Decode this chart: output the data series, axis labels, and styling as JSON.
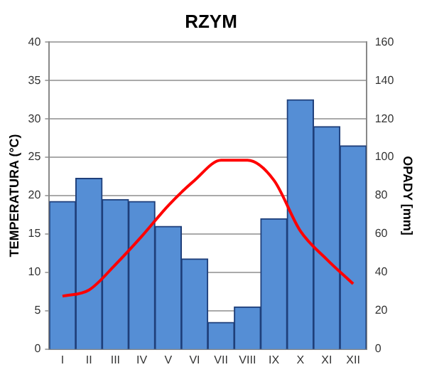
{
  "chart_data": {
    "type": "bar",
    "title": "RZYM",
    "ylabel": "TEMPERATURA (°C)",
    "y2label": "OPADY [mm]",
    "categories": [
      "I",
      "II",
      "III",
      "IV",
      "V",
      "VI",
      "VII",
      "VIII",
      "IX",
      "X",
      "XI",
      "XII"
    ],
    "series": [
      {
        "axis": "y2",
        "color": "#558ed5",
        "values": [
          77,
          89,
          78,
          77,
          64,
          47,
          14,
          22,
          68,
          130,
          116,
          106
        ]
      },
      {
        "type": "line",
        "axis": "y",
        "color": "#ff0000",
        "values": [
          6.9,
          7.7,
          11.0,
          14.7,
          18.7,
          22.0,
          24.6,
          24.6,
          22.0,
          15.4,
          11.7,
          8.5
        ]
      }
    ],
    "ylim": [
      0,
      40
    ],
    "yticks": [
      0,
      5,
      10,
      15,
      20,
      25,
      30,
      35,
      40
    ],
    "y2lim": [
      0,
      160
    ],
    "y2ticks": [
      0,
      20,
      40,
      60,
      80,
      100,
      120,
      140,
      160
    ],
    "grid": "y",
    "legend": false,
    "marker": "none",
    "line_style": "solid"
  }
}
